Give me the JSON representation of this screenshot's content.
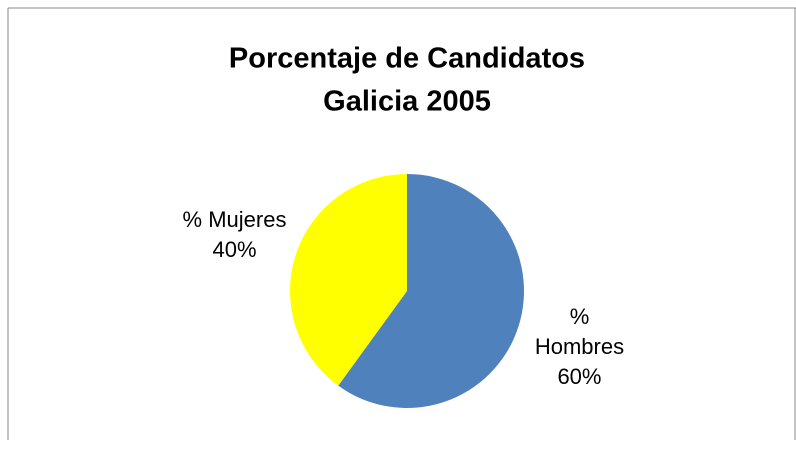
{
  "chart_data": {
    "type": "pie",
    "title": [
      "Porcentaje de Candidatos",
      "Galicia  2005"
    ],
    "categories": [
      "% Hombres",
      "% Mujeres"
    ],
    "values": [
      60,
      40
    ],
    "value_labels": [
      "60%",
      "40%"
    ],
    "colors": [
      "#4f81bd",
      "#ffff00"
    ]
  }
}
